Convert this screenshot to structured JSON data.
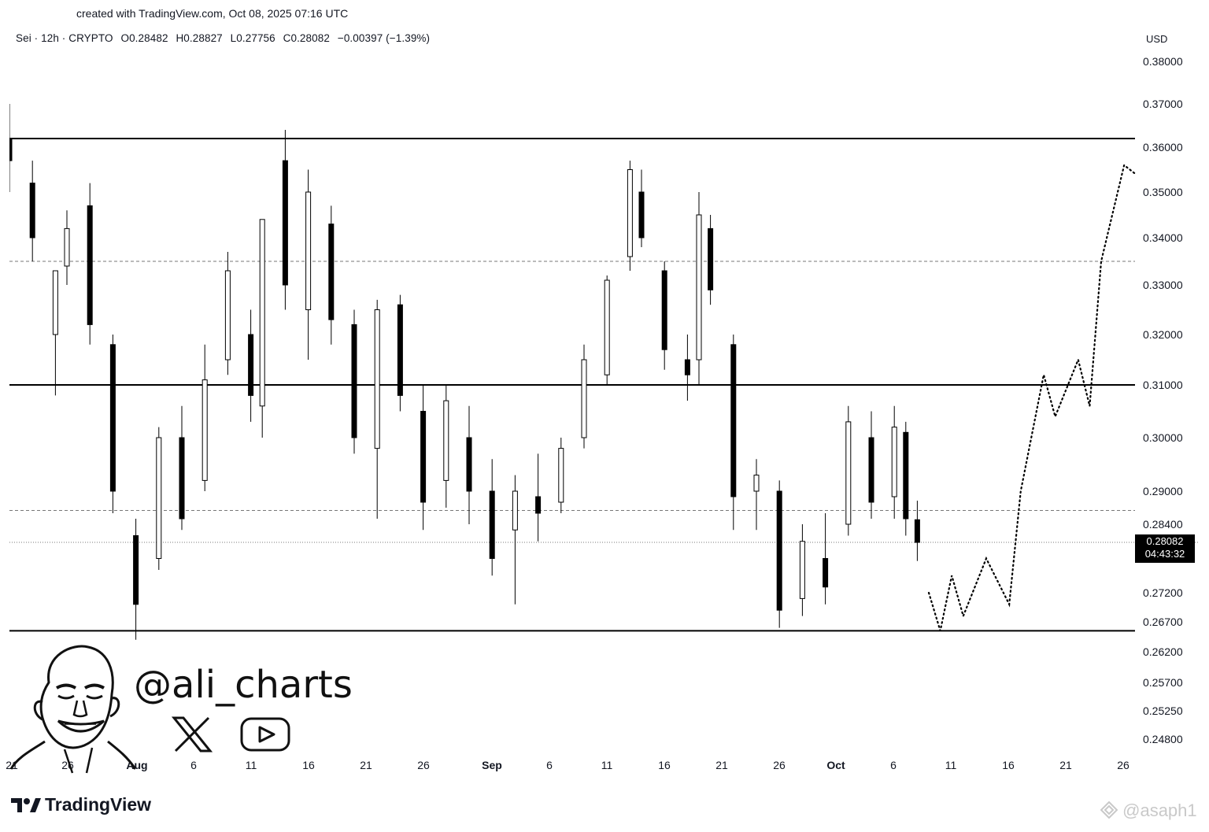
{
  "header": {
    "credit": "created with TradingView.com, Oct 08, 2025 07:16 UTC"
  },
  "legend": {
    "symbol": "Sei · 12h · CRYPTO",
    "open": "O0.28482",
    "high": "H0.28827",
    "low": "L0.27756",
    "close": "C0.28082",
    "change": "−0.00397 (−1.39%)"
  },
  "axis": {
    "currency": "USD",
    "price_labels": [
      "0.38000",
      "0.37000",
      "0.36000",
      "0.35000",
      "0.34000",
      "0.33000",
      "0.32000",
      "0.31000",
      "0.30000",
      "0.29000",
      "0.28400",
      "0.27200",
      "0.26700",
      "0.26200",
      "0.25700",
      "0.25250",
      "0.24800"
    ],
    "time_labels": [
      "21",
      "26",
      "Aug",
      "6",
      "11",
      "16",
      "21",
      "26",
      "Sep",
      "6",
      "11",
      "16",
      "21",
      "26",
      "Oct",
      "6",
      "11",
      "16",
      "21",
      "26"
    ],
    "bold_time_labels": [
      "Aug",
      "Sep",
      "Oct"
    ]
  },
  "last_price": {
    "value": "0.28082",
    "countdown": "04:43:32"
  },
  "branding": {
    "handle": "@ali_charts",
    "footer": "TradingView",
    "watermark": "@asaph1"
  },
  "icons": [
    "x-logo-icon",
    "youtube-icon",
    "avatar-caricature",
    "tradingview-logo-icon",
    "binance-square-icon"
  ],
  "colors": {
    "up_candle": "#ffffff",
    "down_candle": "#000000",
    "wick": "#000000",
    "background": "#ffffff"
  },
  "chart_data": {
    "type": "candlestick",
    "title": "",
    "timeframe": "12h",
    "x_range": [
      "2025-07-21",
      "2025-10-26"
    ],
    "ylim": [
      0.248,
      0.38
    ],
    "y_scale": "nonlinear",
    "grid": false,
    "candles_approx": [
      {
        "date": "2025-07-21",
        "o": 0.362,
        "h": 0.37,
        "l": 0.35,
        "c": 0.357
      },
      {
        "date": "2025-07-23",
        "o": 0.352,
        "h": 0.357,
        "l": 0.335,
        "c": 0.34
      },
      {
        "date": "2025-07-25",
        "o": 0.32,
        "h": 0.33,
        "l": 0.308,
        "c": 0.333
      },
      {
        "date": "2025-07-26",
        "o": 0.334,
        "h": 0.346,
        "l": 0.33,
        "c": 0.342
      },
      {
        "date": "2025-07-28",
        "o": 0.347,
        "h": 0.352,
        "l": 0.318,
        "c": 0.322
      },
      {
        "date": "2025-07-30",
        "o": 0.318,
        "h": 0.32,
        "l": 0.286,
        "c": 0.29
      },
      {
        "date": "2025-08-01",
        "o": 0.282,
        "h": 0.285,
        "l": 0.264,
        "c": 0.27
      },
      {
        "date": "2025-08-03",
        "o": 0.278,
        "h": 0.302,
        "l": 0.276,
        "c": 0.3
      },
      {
        "date": "2025-08-05",
        "o": 0.3,
        "h": 0.306,
        "l": 0.283,
        "c": 0.285
      },
      {
        "date": "2025-08-07",
        "o": 0.292,
        "h": 0.318,
        "l": 0.29,
        "c": 0.311
      },
      {
        "date": "2025-08-09",
        "o": 0.315,
        "h": 0.337,
        "l": 0.312,
        "c": 0.333
      },
      {
        "date": "2025-08-11",
        "o": 0.32,
        "h": 0.325,
        "l": 0.303,
        "c": 0.308
      },
      {
        "date": "2025-08-12",
        "o": 0.306,
        "h": 0.34,
        "l": 0.3,
        "c": 0.344
      },
      {
        "date": "2025-08-14",
        "o": 0.357,
        "h": 0.364,
        "l": 0.325,
        "c": 0.33
      },
      {
        "date": "2025-08-16",
        "o": 0.325,
        "h": 0.355,
        "l": 0.315,
        "c": 0.35
      },
      {
        "date": "2025-08-18",
        "o": 0.343,
        "h": 0.347,
        "l": 0.318,
        "c": 0.323
      },
      {
        "date": "2025-08-20",
        "o": 0.322,
        "h": 0.325,
        "l": 0.297,
        "c": 0.3
      },
      {
        "date": "2025-08-22",
        "o": 0.298,
        "h": 0.327,
        "l": 0.285,
        "c": 0.325
      },
      {
        "date": "2025-08-24",
        "o": 0.326,
        "h": 0.328,
        "l": 0.305,
        "c": 0.308
      },
      {
        "date": "2025-08-26",
        "o": 0.305,
        "h": 0.31,
        "l": 0.283,
        "c": 0.288
      },
      {
        "date": "2025-08-28",
        "o": 0.292,
        "h": 0.31,
        "l": 0.287,
        "c": 0.307
      },
      {
        "date": "2025-08-30",
        "o": 0.3,
        "h": 0.306,
        "l": 0.284,
        "c": 0.29
      },
      {
        "date": "2025-09-01",
        "o": 0.29,
        "h": 0.296,
        "l": 0.275,
        "c": 0.278
      },
      {
        "date": "2025-09-03",
        "o": 0.283,
        "h": 0.293,
        "l": 0.27,
        "c": 0.29
      },
      {
        "date": "2025-09-05",
        "o": 0.289,
        "h": 0.297,
        "l": 0.281,
        "c": 0.286
      },
      {
        "date": "2025-09-07",
        "o": 0.288,
        "h": 0.3,
        "l": 0.286,
        "c": 0.298
      },
      {
        "date": "2025-09-09",
        "o": 0.3,
        "h": 0.318,
        "l": 0.298,
        "c": 0.315
      },
      {
        "date": "2025-09-11",
        "o": 0.312,
        "h": 0.332,
        "l": 0.31,
        "c": 0.331
      },
      {
        "date": "2025-09-13",
        "o": 0.336,
        "h": 0.357,
        "l": 0.333,
        "c": 0.355
      },
      {
        "date": "2025-09-14",
        "o": 0.35,
        "h": 0.355,
        "l": 0.338,
        "c": 0.34
      },
      {
        "date": "2025-09-16",
        "o": 0.333,
        "h": 0.335,
        "l": 0.313,
        "c": 0.317
      },
      {
        "date": "2025-09-18",
        "o": 0.315,
        "h": 0.32,
        "l": 0.307,
        "c": 0.312
      },
      {
        "date": "2025-09-19",
        "o": 0.315,
        "h": 0.35,
        "l": 0.31,
        "c": 0.345
      },
      {
        "date": "2025-09-20",
        "o": 0.342,
        "h": 0.345,
        "l": 0.326,
        "c": 0.329
      },
      {
        "date": "2025-09-22",
        "o": 0.318,
        "h": 0.32,
        "l": 0.283,
        "c": 0.289
      },
      {
        "date": "2025-09-24",
        "o": 0.29,
        "h": 0.296,
        "l": 0.283,
        "c": 0.293
      },
      {
        "date": "2025-09-26",
        "o": 0.29,
        "h": 0.292,
        "l": 0.266,
        "c": 0.269
      },
      {
        "date": "2025-09-28",
        "o": 0.271,
        "h": 0.284,
        "l": 0.268,
        "c": 0.281
      },
      {
        "date": "2025-09-30",
        "o": 0.278,
        "h": 0.286,
        "l": 0.27,
        "c": 0.273
      },
      {
        "date": "2025-10-02",
        "o": 0.284,
        "h": 0.306,
        "l": 0.282,
        "c": 0.303
      },
      {
        "date": "2025-10-04",
        "o": 0.3,
        "h": 0.305,
        "l": 0.285,
        "c": 0.288
      },
      {
        "date": "2025-10-06",
        "o": 0.289,
        "h": 0.306,
        "l": 0.285,
        "c": 0.302
      },
      {
        "date": "2025-10-07",
        "o": 0.301,
        "h": 0.303,
        "l": 0.282,
        "c": 0.285
      },
      {
        "date": "2025-10-08",
        "o": 0.28482,
        "h": 0.28827,
        "l": 0.27756,
        "c": 0.28082
      }
    ],
    "horizontal_levels": [
      {
        "style": "solid",
        "price": 0.362
      },
      {
        "style": "solid",
        "price": 0.31
      },
      {
        "style": "solid",
        "price": 0.2655
      },
      {
        "style": "dashed",
        "price": 0.335
      },
      {
        "style": "dashed",
        "price": 0.2865
      },
      {
        "style": "dotted",
        "price": 0.28082
      }
    ],
    "projection_path_dotted": [
      {
        "date": "2025-10-09",
        "price": 0.272
      },
      {
        "date": "2025-10-10",
        "price": 0.2655
      },
      {
        "date": "2025-10-11",
        "price": 0.275
      },
      {
        "date": "2025-10-12",
        "price": 0.268
      },
      {
        "date": "2025-10-14",
        "price": 0.278
      },
      {
        "date": "2025-10-16",
        "price": 0.27
      },
      {
        "date": "2025-10-17",
        "price": 0.29
      },
      {
        "date": "2025-10-19",
        "price": 0.312
      },
      {
        "date": "2025-10-20",
        "price": 0.304
      },
      {
        "date": "2025-10-22",
        "price": 0.315
      },
      {
        "date": "2025-10-23",
        "price": 0.306
      },
      {
        "date": "2025-10-24",
        "price": 0.335
      },
      {
        "date": "2025-10-26",
        "price": 0.356
      },
      {
        "date": "2025-10-27",
        "price": 0.354
      }
    ]
  }
}
